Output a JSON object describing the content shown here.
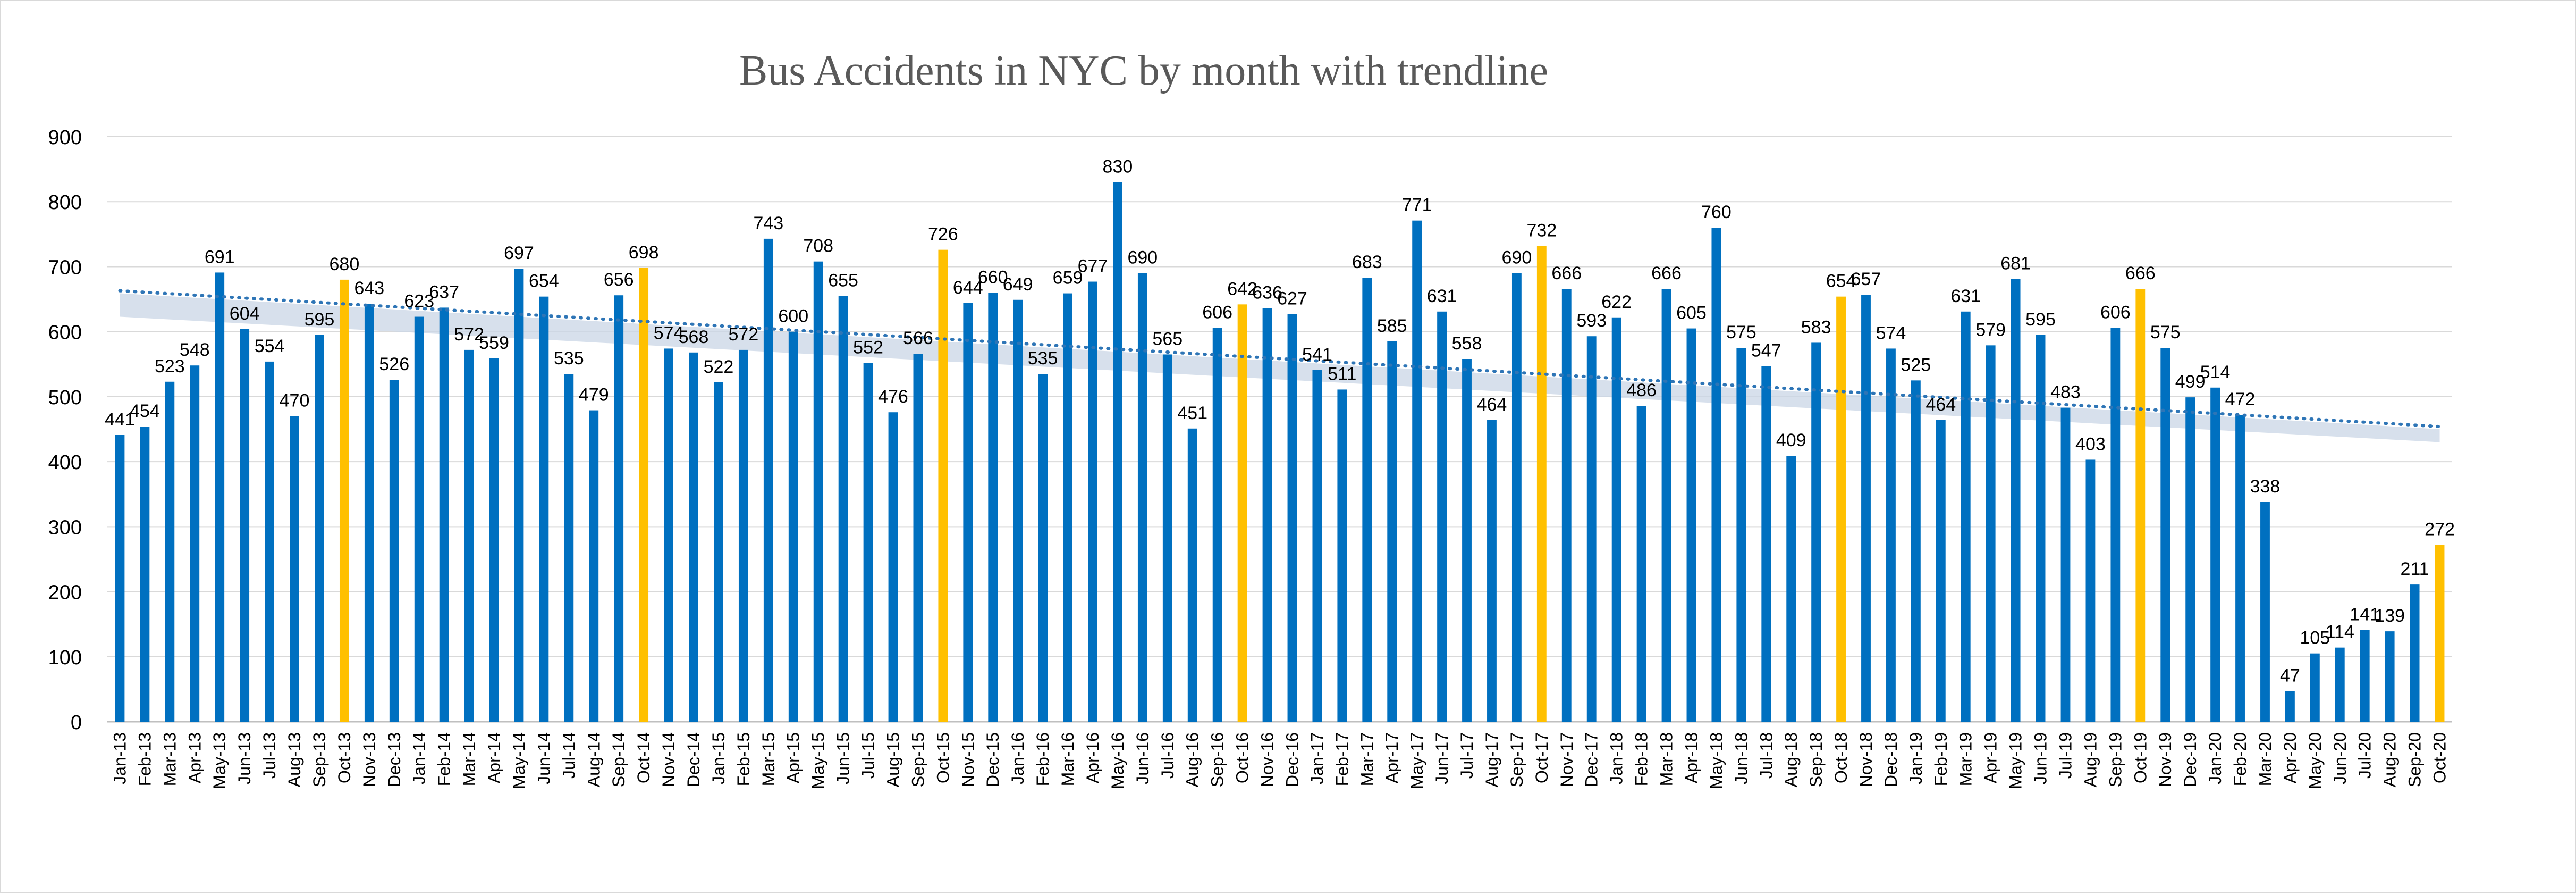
{
  "chart_data": {
    "type": "bar",
    "title": "Bus Accidents in NYC by month with trendline",
    "xlabel": "",
    "ylabel": "",
    "ylim": [
      0,
      900
    ],
    "yticks": [
      0,
      100,
      200,
      300,
      400,
      500,
      600,
      700,
      800,
      900
    ],
    "grid": true,
    "legend": "none",
    "colors": {
      "bar": "#0070c0",
      "highlight": "#ffc000",
      "trendline": "#2e75b6",
      "grid": "#d9d9d9",
      "title": "#595959"
    },
    "highlight_rule": "October bars highlighted",
    "trendline": {
      "type": "linear",
      "style": "dotted",
      "start": 663,
      "end": 454
    },
    "categories": [
      "Jan-13",
      "Feb-13",
      "Mar-13",
      "Apr-13",
      "May-13",
      "Jun-13",
      "Jul-13",
      "Aug-13",
      "Sep-13",
      "Oct-13",
      "Nov-13",
      "Dec-13",
      "Jan-14",
      "Feb-14",
      "Mar-14",
      "Apr-14",
      "May-14",
      "Jun-14",
      "Jul-14",
      "Aug-14",
      "Sep-14",
      "Oct-14",
      "Nov-14",
      "Dec-14",
      "Jan-15",
      "Feb-15",
      "Mar-15",
      "Apr-15",
      "May-15",
      "Jun-15",
      "Jul-15",
      "Aug-15",
      "Sep-15",
      "Oct-15",
      "Nov-15",
      "Dec-15",
      "Jan-16",
      "Feb-16",
      "Mar-16",
      "Apr-16",
      "May-16",
      "Jun-16",
      "Jul-16",
      "Aug-16",
      "Sep-16",
      "Oct-16",
      "Nov-16",
      "Dec-16",
      "Jan-17",
      "Feb-17",
      "Mar-17",
      "Apr-17",
      "May-17",
      "Jun-17",
      "Jul-17",
      "Aug-17",
      "Sep-17",
      "Oct-17",
      "Nov-17",
      "Dec-17",
      "Jan-18",
      "Feb-18",
      "Mar-18",
      "Apr-18",
      "May-18",
      "Jun-18",
      "Jul-18",
      "Aug-18",
      "Sep-18",
      "Oct-18",
      "Nov-18",
      "Dec-18",
      "Jan-19",
      "Feb-19",
      "Mar-19",
      "Apr-19",
      "May-19",
      "Jun-19",
      "Jul-19",
      "Aug-19",
      "Sep-19",
      "Oct-19",
      "Nov-19",
      "Dec-19",
      "Jan-20",
      "Feb-20",
      "Mar-20",
      "Apr-20",
      "May-20",
      "Jun-20",
      "Jul-20",
      "Aug-20",
      "Sep-20",
      "Oct-20"
    ],
    "values": [
      441,
      454,
      523,
      548,
      691,
      604,
      554,
      470,
      595,
      680,
      643,
      526,
      623,
      637,
      572,
      559,
      697,
      654,
      535,
      479,
      656,
      698,
      574,
      568,
      522,
      572,
      743,
      600,
      708,
      655,
      552,
      476,
      566,
      726,
      644,
      660,
      649,
      535,
      659,
      677,
      830,
      690,
      565,
      451,
      606,
      642,
      636,
      627,
      541,
      511,
      683,
      585,
      771,
      631,
      558,
      464,
      690,
      732,
      666,
      593,
      622,
      486,
      666,
      605,
      760,
      575,
      547,
      409,
      583,
      654,
      657,
      574,
      525,
      464,
      631,
      579,
      681,
      595,
      483,
      403,
      606,
      666,
      575,
      499,
      514,
      472,
      338,
      47,
      105,
      114,
      141,
      139,
      211,
      272
    ]
  }
}
